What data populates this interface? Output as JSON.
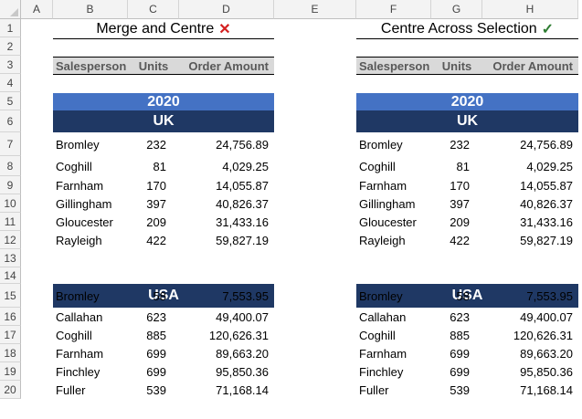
{
  "columns": [
    "A",
    "B",
    "C",
    "D",
    "E",
    "F",
    "G",
    "H"
  ],
  "rows": [
    "1",
    "2",
    "3",
    "4",
    "5",
    "6",
    "7",
    "8",
    "9",
    "10",
    "11",
    "12",
    "13",
    "14",
    "15",
    "16",
    "17",
    "18",
    "19",
    "20"
  ],
  "left_title": "Merge and Centre",
  "left_title_mark": "✕",
  "right_title": "Centre Across Selection",
  "right_title_mark": "✓",
  "headers": [
    "Salesperson",
    "Units",
    "Order Amount"
  ],
  "year": "2020",
  "uk_label": "UK",
  "usa_label": "USA",
  "uk_rows": [
    [
      "Bromley",
      "232",
      "24,756.89"
    ],
    [
      "Coghill",
      "81",
      "4,029.25"
    ],
    [
      "Farnham",
      "170",
      "14,055.87"
    ],
    [
      "Gillingham",
      "397",
      "40,826.37"
    ],
    [
      "Gloucester",
      "209",
      "31,433.16"
    ],
    [
      "Rayleigh",
      "422",
      "59,827.19"
    ]
  ],
  "usa_rows": [
    [
      "Bromley",
      "58",
      "7,553.95"
    ],
    [
      "Callahan",
      "623",
      "49,400.07"
    ],
    [
      "Coghill",
      "885",
      "120,626.31"
    ],
    [
      "Farnham",
      "699",
      "89,663.20"
    ],
    [
      "Finchley",
      "699",
      "95,850.36"
    ],
    [
      "Fuller",
      "539",
      "71,168.14"
    ]
  ],
  "colors": {
    "year_band": "#4472c4",
    "country_band": "#1f3864",
    "header_fill": "#d9d9d9",
    "cross": "#d42020",
    "tick": "#2e7d32"
  }
}
